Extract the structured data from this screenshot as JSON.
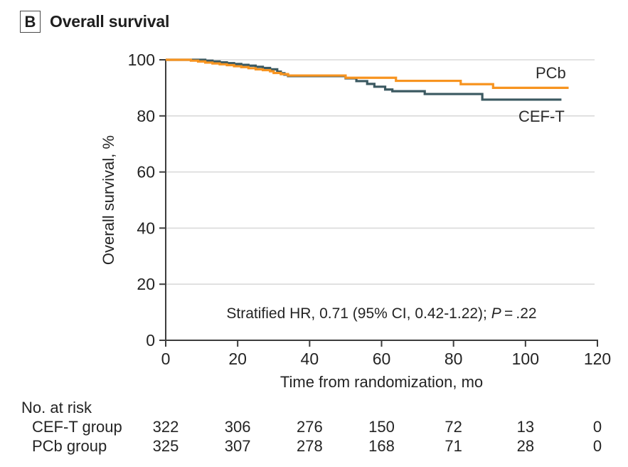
{
  "header": {
    "panel_letter": "B",
    "title": "Overall survival"
  },
  "colors": {
    "pcb_line": "#F79420",
    "cef_line": "#3B5961",
    "grid": "#DADADA",
    "axis": "#3D3D3D",
    "text": "#242424"
  },
  "chart_data": {
    "type": "line",
    "subtype": "kaplan-meier-step",
    "title": "Overall survival",
    "xlabel": "Time from randomization, mo",
    "ylabel": "Overall survival, %",
    "xlim": [
      0,
      120
    ],
    "ylim": [
      0,
      100
    ],
    "x_ticks": [
      0,
      20,
      40,
      60,
      80,
      100,
      120
    ],
    "y_ticks": [
      0,
      20,
      40,
      60,
      80,
      100
    ],
    "grid": "horizontal-light-gray",
    "legend_position": "labels-at-line-ends",
    "annotation": {
      "prefix": "Stratified HR, 0.71 (95% CI, 0.42-1.22); ",
      "p_label": "P",
      "p_suffix": " = .22"
    },
    "series": [
      {
        "name": "CEF-T",
        "color": "#3B5961",
        "steps": [
          [
            0,
            100
          ],
          [
            11,
            99.7
          ],
          [
            13,
            99.4
          ],
          [
            15,
            99.1
          ],
          [
            17,
            98.8
          ],
          [
            19,
            98.5
          ],
          [
            21,
            98.2
          ],
          [
            23,
            97.9
          ],
          [
            25,
            97.5
          ],
          [
            27,
            97.1
          ],
          [
            29,
            96.6
          ],
          [
            31,
            95.8
          ],
          [
            32,
            95.2
          ],
          [
            33,
            94.7
          ],
          [
            34,
            94.2
          ],
          [
            50,
            93.4
          ],
          [
            53,
            92.4
          ],
          [
            56,
            91.4
          ],
          [
            58,
            90.4
          ],
          [
            61,
            89.4
          ],
          [
            63,
            88.8
          ],
          [
            72,
            87.8
          ],
          [
            88,
            85.8
          ],
          [
            110,
            85.8
          ]
        ]
      },
      {
        "name": "PCb",
        "color": "#F79420",
        "steps": [
          [
            0,
            100
          ],
          [
            7,
            99.7
          ],
          [
            9,
            99.4
          ],
          [
            11,
            99.0
          ],
          [
            13,
            98.7
          ],
          [
            15,
            98.4
          ],
          [
            17,
            98.1
          ],
          [
            19,
            97.7
          ],
          [
            21,
            97.4
          ],
          [
            23,
            97.0
          ],
          [
            25,
            96.6
          ],
          [
            27,
            96.3
          ],
          [
            29,
            95.9
          ],
          [
            30,
            95.3
          ],
          [
            32,
            94.9
          ],
          [
            34,
            94.4
          ],
          [
            50,
            93.6
          ],
          [
            64,
            92.5
          ],
          [
            82,
            91.3
          ],
          [
            91,
            90.0
          ],
          [
            112,
            90.0
          ]
        ]
      }
    ]
  },
  "risk_table": {
    "title": "No. at risk",
    "time_points": [
      0,
      20,
      40,
      60,
      80,
      100,
      120
    ],
    "rows": [
      {
        "label": "CEF-T group",
        "values": [
          "322",
          "306",
          "276",
          "150",
          "72",
          "13",
          "0"
        ]
      },
      {
        "label": "PCb group",
        "values": [
          "325",
          "307",
          "278",
          "168",
          "71",
          "28",
          "0"
        ]
      }
    ]
  }
}
